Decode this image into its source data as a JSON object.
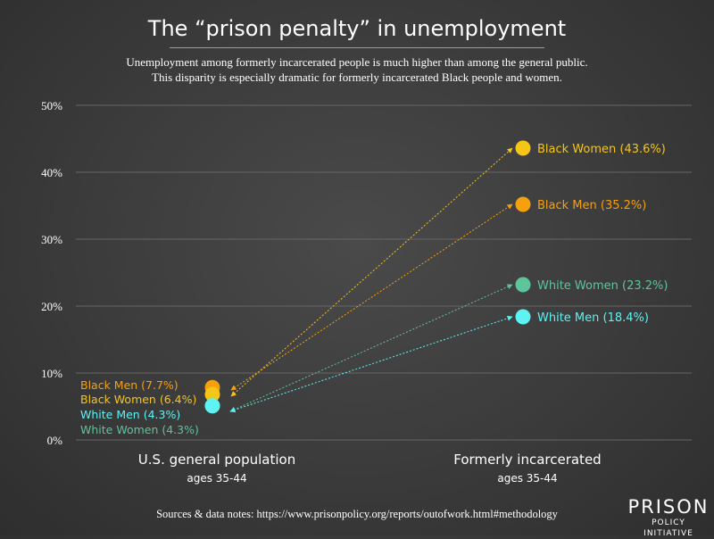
{
  "title": "The “prison penalty” in unemployment",
  "subtitle_lines": [
    "Unemployment among formerly incarcerated people is much higher than among the general public.",
    "This disparity is especially dramatic for formerly incarcerated Black people and women."
  ],
  "source": "Sources & data notes: https://www.prisonpolicy.org/reports/outofwork.html#methodology",
  "logo": {
    "main": "PRISON",
    "sub": "POLICY INITIATIVE"
  },
  "chart_data": {
    "type": "scatter",
    "ylim": [
      0,
      50
    ],
    "y_ticks": [
      0,
      10,
      20,
      30,
      40,
      50
    ],
    "y_tick_labels": [
      "0%",
      "10%",
      "20%",
      "30%",
      "40%",
      "50%"
    ],
    "grid": true,
    "categories": [
      {
        "label": "U.S. general population",
        "sublabel": "ages 35-44"
      },
      {
        "label": "Formerly incarcerated",
        "sublabel": "ages 35-44"
      }
    ],
    "series": [
      {
        "name": "Black Women",
        "color": "#f5c518",
        "values": [
          6.4,
          43.6
        ],
        "labels": [
          "Black Women (6.4%)",
          "Black Women (43.6%)"
        ]
      },
      {
        "name": "Black Men",
        "color": "#f5a00f",
        "values": [
          7.7,
          35.2
        ],
        "labels": [
          "Black Men (7.7%)",
          "Black Men (35.2%)"
        ]
      },
      {
        "name": "White Women",
        "color": "#5ec49a",
        "values": [
          4.3,
          23.2
        ],
        "labels": [
          "White Women (4.3%)",
          "White Women (23.2%)"
        ]
      },
      {
        "name": "White Men",
        "color": "#5ef2f2",
        "values": [
          4.3,
          18.4
        ],
        "labels": [
          "White Men (4.3%)",
          "White Men (18.4%)"
        ]
      }
    ]
  }
}
